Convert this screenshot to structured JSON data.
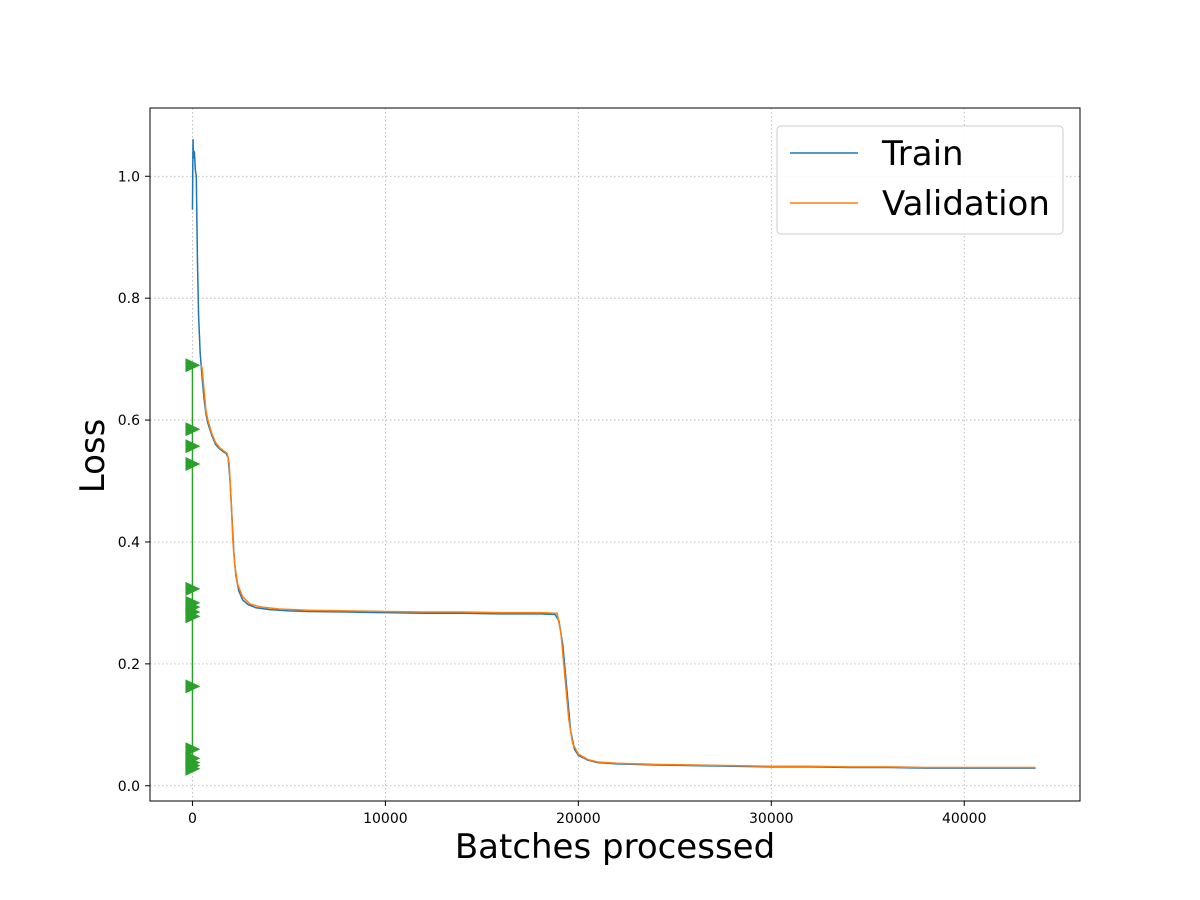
{
  "chart_data": {
    "type": "line",
    "xlabel": "Batches processed",
    "ylabel": "Loss",
    "xlim": [
      -2200,
      46000
    ],
    "ylim": [
      -0.025,
      1.112
    ],
    "x_ticks": [
      0,
      10000,
      20000,
      30000,
      40000
    ],
    "x_tick_labels": [
      "0",
      "10000",
      "20000",
      "30000",
      "40000"
    ],
    "y_ticks": [
      0.0,
      0.2,
      0.4,
      0.6,
      0.8,
      1.0
    ],
    "y_tick_labels": [
      "0.0",
      "0.2",
      "0.4",
      "0.6",
      "0.8",
      "1.0"
    ],
    "grid": true,
    "legend_position": "top-right",
    "series": [
      {
        "name": "Train",
        "color": "#1f77b4",
        "points": [
          [
            0,
            0.945
          ],
          [
            30,
            1.06
          ],
          [
            60,
            1.03
          ],
          [
            100,
            1.04
          ],
          [
            150,
            1.01
          ],
          [
            200,
            1.0
          ],
          [
            260,
            0.86
          ],
          [
            320,
            0.77
          ],
          [
            400,
            0.71
          ],
          [
            500,
            0.67
          ],
          [
            600,
            0.635
          ],
          [
            700,
            0.61
          ],
          [
            800,
            0.595
          ],
          [
            1000,
            0.575
          ],
          [
            1200,
            0.56
          ],
          [
            1400,
            0.553
          ],
          [
            1600,
            0.548
          ],
          [
            1750,
            0.545
          ],
          [
            1850,
            0.538
          ],
          [
            1950,
            0.5
          ],
          [
            2050,
            0.44
          ],
          [
            2150,
            0.38
          ],
          [
            2250,
            0.345
          ],
          [
            2400,
            0.32
          ],
          [
            2600,
            0.305
          ],
          [
            2900,
            0.297
          ],
          [
            3300,
            0.292
          ],
          [
            4000,
            0.289
          ],
          [
            5000,
            0.287
          ],
          [
            6000,
            0.286
          ],
          [
            8000,
            0.285
          ],
          [
            10000,
            0.284
          ],
          [
            12000,
            0.283
          ],
          [
            14000,
            0.283
          ],
          [
            16000,
            0.282
          ],
          [
            18000,
            0.282
          ],
          [
            18800,
            0.281
          ],
          [
            19000,
            0.27
          ],
          [
            19200,
            0.23
          ],
          [
            19400,
            0.16
          ],
          [
            19600,
            0.09
          ],
          [
            19800,
            0.06
          ],
          [
            20000,
            0.05
          ],
          [
            20500,
            0.042
          ],
          [
            21000,
            0.038
          ],
          [
            22000,
            0.036
          ],
          [
            24000,
            0.034
          ],
          [
            26000,
            0.033
          ],
          [
            28000,
            0.032
          ],
          [
            30000,
            0.031
          ],
          [
            32000,
            0.031
          ],
          [
            34000,
            0.03
          ],
          [
            36000,
            0.03
          ],
          [
            38000,
            0.029
          ],
          [
            40000,
            0.029
          ],
          [
            42000,
            0.029
          ],
          [
            43700,
            0.029
          ]
        ]
      },
      {
        "name": "Validation",
        "color": "#ff7f0e",
        "points": [
          [
            450,
            0.69
          ],
          [
            500,
            0.685
          ],
          [
            600,
            0.65
          ],
          [
            700,
            0.615
          ],
          [
            800,
            0.6
          ],
          [
            1000,
            0.578
          ],
          [
            1200,
            0.563
          ],
          [
            1400,
            0.555
          ],
          [
            1600,
            0.55
          ],
          [
            1800,
            0.545
          ],
          [
            1900,
            0.53
          ],
          [
            2000,
            0.47
          ],
          [
            2100,
            0.4
          ],
          [
            2200,
            0.36
          ],
          [
            2350,
            0.33
          ],
          [
            2600,
            0.31
          ],
          [
            3000,
            0.298
          ],
          [
            3600,
            0.293
          ],
          [
            4500,
            0.29
          ],
          [
            6000,
            0.288
          ],
          [
            8000,
            0.287
          ],
          [
            10000,
            0.286
          ],
          [
            12000,
            0.285
          ],
          [
            14000,
            0.285
          ],
          [
            16000,
            0.284
          ],
          [
            18000,
            0.284
          ],
          [
            18900,
            0.283
          ],
          [
            19100,
            0.25
          ],
          [
            19300,
            0.18
          ],
          [
            19500,
            0.11
          ],
          [
            19700,
            0.07
          ],
          [
            20000,
            0.052
          ],
          [
            20500,
            0.043
          ],
          [
            21000,
            0.039
          ],
          [
            22000,
            0.037
          ],
          [
            24000,
            0.035
          ],
          [
            26000,
            0.034
          ],
          [
            28000,
            0.033
          ],
          [
            30000,
            0.032
          ],
          [
            32000,
            0.032
          ],
          [
            34000,
            0.031
          ],
          [
            36000,
            0.031
          ],
          [
            38000,
            0.03
          ],
          [
            40000,
            0.03
          ],
          [
            42000,
            0.03
          ],
          [
            43700,
            0.03
          ]
        ]
      },
      {
        "color": "#2ca02c",
        "marker": "triangle-right",
        "points": [
          [
            0,
            0.69
          ],
          [
            0,
            0.585
          ],
          [
            0,
            0.557
          ],
          [
            0,
            0.528
          ],
          [
            0,
            0.323
          ],
          [
            0,
            0.3
          ],
          [
            0,
            0.293
          ],
          [
            0,
            0.285
          ],
          [
            0,
            0.278
          ],
          [
            0,
            0.163
          ],
          [
            0,
            0.06
          ],
          [
            0,
            0.045
          ],
          [
            0,
            0.038
          ],
          [
            0,
            0.033
          ],
          [
            0,
            0.028
          ]
        ]
      }
    ]
  }
}
